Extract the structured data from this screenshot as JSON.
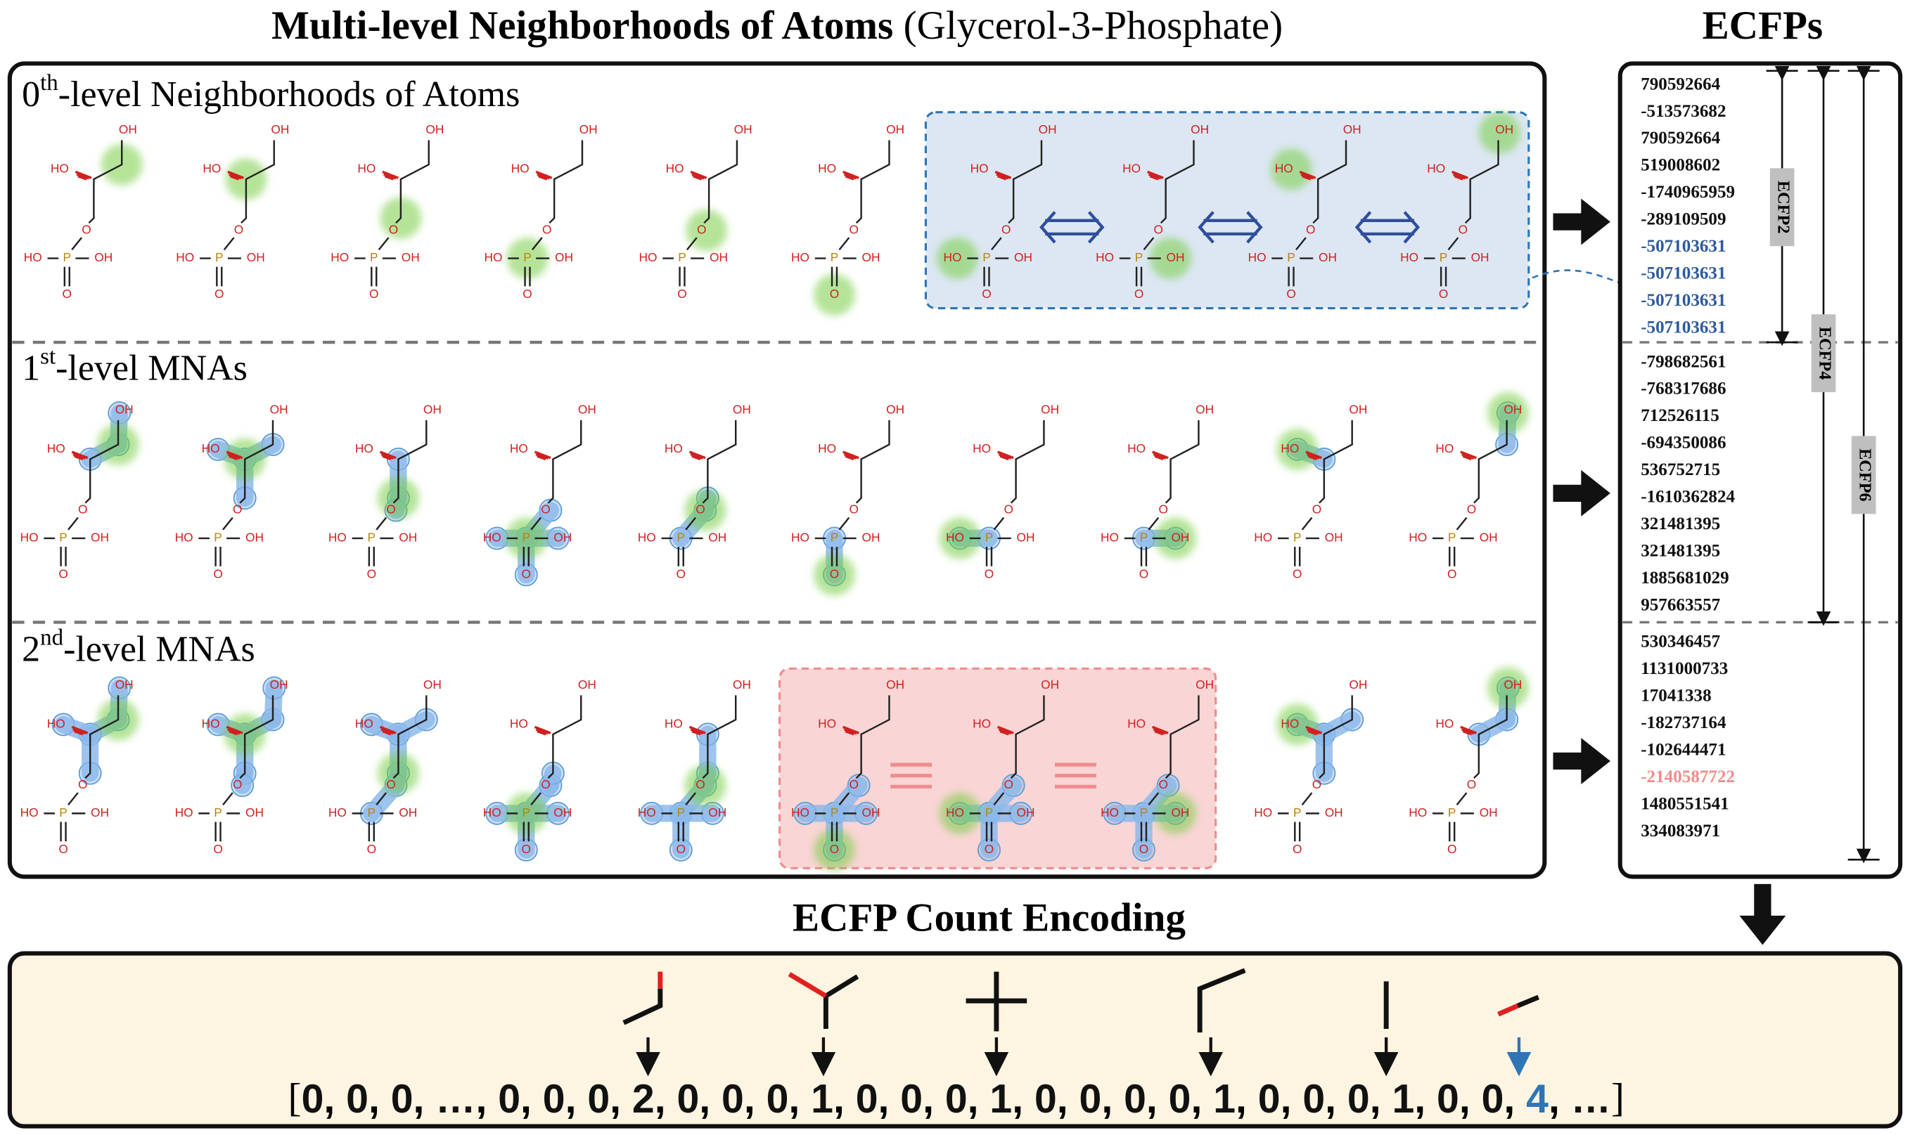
{
  "title": {
    "bold": "Multi-level Neighborhoods of Atoms",
    "normal": "(Glycerol-3-Phosphate)"
  },
  "ecfp_title": "ECFPs",
  "levels": [
    {
      "number": "0",
      "sup": "th",
      "text": "-level Neighborhoods of Atoms"
    },
    {
      "number": "1",
      "sup": "st",
      "text": "-level MNAs"
    },
    {
      "number": "2",
      "sup": "nd",
      "text": "-level MNAs"
    }
  ],
  "atom_labels": [
    "HO",
    "OH",
    "O",
    "P"
  ],
  "ecfp_groups": [
    {
      "values": [
        790592664,
        -513573682,
        790592664,
        519008602,
        -1740965959,
        -289109509,
        -507103631,
        -507103631,
        -507103631,
        -507103631
      ],
      "colors": [
        "#111111",
        "#111111",
        "#111111",
        "#111111",
        "#111111",
        "#111111",
        "#2e5a9c",
        "#2e5a9c",
        "#2e5a9c",
        "#2e5a9c"
      ]
    },
    {
      "values": [
        -798682561,
        -768317686,
        712526115,
        -694350086,
        536752715,
        -1610362824,
        321481395,
        321481395,
        1885681029,
        957663557
      ],
      "colors": [
        "#111111",
        "#111111",
        "#111111",
        "#111111",
        "#111111",
        "#111111",
        "#111111",
        "#111111",
        "#111111",
        "#111111"
      ]
    },
    {
      "values": [
        530346457,
        1131000733,
        17041338,
        -182737164,
        -102644471,
        -2140587722,
        1480551541,
        334083971
      ],
      "colors": [
        "#111111",
        "#111111",
        "#111111",
        "#111111",
        "#111111",
        "#f08c8c",
        "#111111",
        "#111111"
      ]
    }
  ],
  "ecfp_brackets": [
    "ECFP2",
    "ECFP4",
    "ECFP6"
  ],
  "encoding_title": "ECFP Count Encoding",
  "vector_open": "[",
  "vector_close": "]",
  "vector_separator": ", ",
  "vector": [
    0,
    0,
    0,
    "…",
    0,
    0,
    0,
    2,
    0,
    0,
    0,
    1,
    0,
    0,
    0,
    1,
    0,
    0,
    0,
    0,
    1,
    0,
    0,
    0,
    1,
    0,
    0,
    4,
    "…"
  ],
  "vector_colors": [
    "#111111",
    "#111111",
    "#111111",
    "#111111",
    "#111111",
    "#111111",
    "#111111",
    "#111111",
    "#111111",
    "#111111",
    "#111111",
    "#111111",
    "#111111",
    "#111111",
    "#111111",
    "#111111",
    "#111111",
    "#111111",
    "#111111",
    "#111111",
    "#111111",
    "#111111",
    "#111111",
    "#111111",
    "#111111",
    "#111111",
    "#111111",
    "#2e75b6",
    "#111111"
  ]
}
